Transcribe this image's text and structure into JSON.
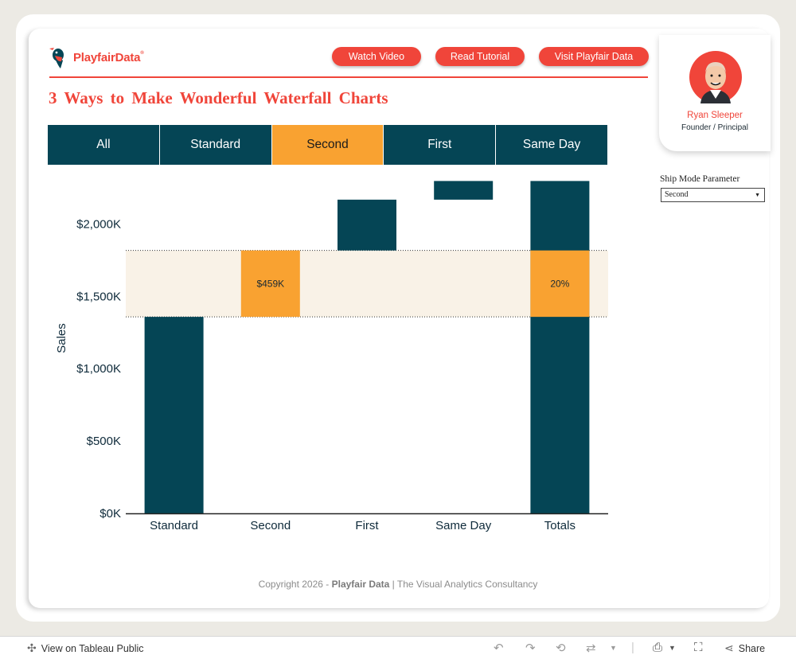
{
  "brand": {
    "logo_word_1": "Playfair",
    "logo_word_2": "Data",
    "logo_reg": "®"
  },
  "nav": {
    "watch": "Watch Video",
    "read": "Read Tutorial",
    "visit": "Visit Playfair Data"
  },
  "title": "3 Ways to Make Wonderful Waterfall Charts",
  "profile": {
    "name": "Ryan Sleeper",
    "role": "Founder / Principal"
  },
  "tabs": [
    "All",
    "Standard",
    "Second",
    "First",
    "Same Day"
  ],
  "active_tab": "Second",
  "parameter": {
    "label": "Ship Mode Parameter",
    "value": "Second"
  },
  "colors": {
    "accent": "#f0453a",
    "bar": "#054555",
    "highlight": "#f9a231",
    "band": "#f9f2e7"
  },
  "chart_data": {
    "type": "bar",
    "subtype": "waterfall",
    "ylabel": "Sales",
    "xlabel": "",
    "ylim": [
      0,
      2300
    ],
    "y_ticks": [
      0,
      500,
      1000,
      1500,
      2000
    ],
    "y_tick_labels": [
      "$0K",
      "$500K",
      "$1,000K",
      "$1,500K",
      "$2,000K"
    ],
    "categories": [
      "Standard",
      "Second",
      "First",
      "Same Day",
      "Totals"
    ],
    "bars": [
      {
        "category": "Standard",
        "start": 0,
        "end": 1358
      },
      {
        "category": "Second",
        "start": 1358,
        "end": 1817,
        "highlight": true,
        "label": "$459K"
      },
      {
        "category": "First",
        "start": 1817,
        "end": 2168
      },
      {
        "category": "Same Day",
        "start": 2168,
        "end": 2297
      },
      {
        "category": "Totals",
        "start": 0,
        "end": 2297,
        "highlight_range": [
          1358,
          1817
        ],
        "label": "20%"
      }
    ],
    "reference_band": [
      1358,
      1817
    ],
    "grid": false
  },
  "copyright": {
    "prefix": "Copyright 2026 - ",
    "brand": "Playfair Data",
    "suffix": " | The Visual Analytics Consultancy"
  },
  "footer": {
    "view_label": "View on Tableau Public",
    "share_label": "Share"
  }
}
